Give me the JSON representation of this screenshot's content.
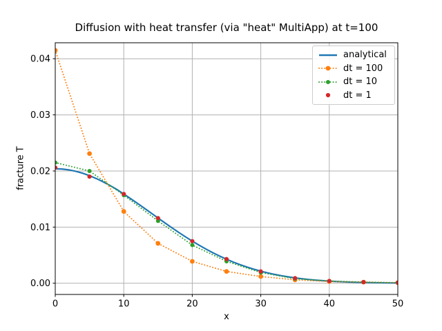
{
  "figure": {
    "background": "#ffffff"
  },
  "chart_data": {
    "type": "line",
    "title": "Diffusion with heat transfer (via \"heat\" MultiApp) at t=100",
    "xlabel": "x",
    "ylabel": "fracture T",
    "xlim": [
      0,
      50
    ],
    "ylim": [
      -0.002,
      0.04285
    ],
    "xticks": [
      0,
      10,
      20,
      30,
      40,
      50
    ],
    "xtick_labels": [
      "0",
      "10",
      "20",
      "30",
      "40",
      "50"
    ],
    "yticks": [
      0,
      0.01,
      0.02,
      0.03,
      0.04
    ],
    "ytick_labels": [
      "0.00",
      "0.01",
      "0.02",
      "0.03",
      "0.04"
    ],
    "grid": true,
    "grid_color": "#b0b0b0",
    "spine_color": "#000000",
    "legend_position": "upper right",
    "series": [
      {
        "name": "analytical",
        "color": "#1f77b4",
        "line": "solid",
        "marker": false,
        "marker_radius": 0,
        "x": [
          0,
          1,
          2,
          3,
          4,
          5,
          6,
          7,
          8,
          9,
          10,
          11,
          12,
          13,
          14,
          15,
          16,
          17,
          18,
          19,
          20,
          21,
          22,
          23,
          24,
          25,
          26,
          27,
          28,
          29,
          30,
          31,
          32,
          33,
          34,
          35,
          36,
          37,
          38,
          39,
          40,
          41,
          42,
          43,
          44,
          45,
          46,
          47,
          48,
          49,
          50
        ],
        "y": [
          0.0204,
          0.020349,
          0.020197,
          0.019946,
          0.0196,
          0.019166,
          0.01865,
          0.018062,
          0.017411,
          0.016707,
          0.015888,
          0.015075,
          0.014233,
          0.01337,
          0.012497,
          0.011624,
          0.010757,
          0.009904,
          0.009076,
          0.008274,
          0.007505,
          0.006775,
          0.006083,
          0.005437,
          0.004833,
          0.004276,
          0.003764,
          0.003297,
          0.002874,
          0.002493,
          0.00215,
          0.001846,
          0.001577,
          0.00134,
          0.001134,
          0.000955,
          0.0008,
          0.000665,
          0.000551,
          0.000455,
          0.000374,
          0.000305,
          0.000248,
          0.0002,
          0.000161,
          0.000129,
          0.000103,
          8.2e-05,
          6.4e-05,
          5e-05,
          3.9e-05
        ]
      },
      {
        "name": "dt = 100",
        "color": "#ff7f0e",
        "line": "dotted",
        "marker": true,
        "marker_radius": 3.4,
        "x": [
          0,
          5,
          10,
          15,
          20,
          25,
          30,
          35,
          40,
          45,
          50
        ],
        "y": [
          0.0415,
          0.0231,
          0.0128,
          0.0071,
          0.0039,
          0.0021,
          0.0012,
          0.0006,
          0.0003,
          0.0002,
          0.0001
        ]
      },
      {
        "name": "dt = 10",
        "color": "#2ca02c",
        "line": "dotted",
        "marker": true,
        "marker_radius": 3.0,
        "x": [
          0,
          5,
          10,
          15,
          20,
          25,
          30,
          35,
          40,
          45,
          50
        ],
        "y": [
          0.0215,
          0.02,
          0.0157,
          0.0111,
          0.0068,
          0.0039,
          0.0019,
          0.0008,
          0.0004,
          0.0002,
          0.0001
        ]
      },
      {
        "name": "dt = 1",
        "color": "#d62728",
        "line": "none",
        "marker": true,
        "marker_radius": 3.1,
        "x": [
          0,
          5,
          10,
          15,
          20,
          25,
          30,
          35,
          40,
          45,
          50
        ],
        "y": [
          0.0206,
          0.019,
          0.0159,
          0.0116,
          0.0075,
          0.0043,
          0.0021,
          0.0009,
          0.0004,
          0.0002,
          0.0001
        ]
      }
    ]
  }
}
